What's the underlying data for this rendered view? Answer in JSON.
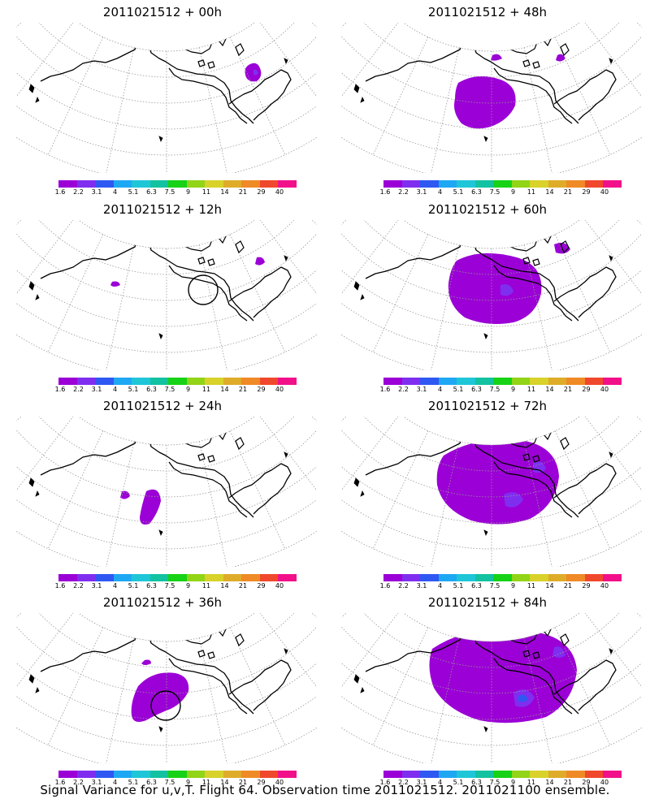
{
  "palette": [
    "#9b00d6",
    "#7f2ef0",
    "#2f58f2",
    "#1ea8f3",
    "#1fc6d8",
    "#13c2a0",
    "#17d217",
    "#92d417",
    "#d8d22a",
    "#dfac2a",
    "#ef8a26",
    "#f0482c",
    "#f2108a"
  ],
  "legend_labels": [
    "1.6",
    "2.2",
    "3.1",
    "4",
    "5.1",
    "6.3",
    "7.5",
    "9",
    "11",
    "14",
    "21",
    "29",
    "40"
  ],
  "map_style": {
    "ocean": "#ffffff",
    "coast": "#000000",
    "grid": "#9a9a9a",
    "circle": "#000000"
  },
  "panels": [
    {
      "id": "p00",
      "title": "2011021512 + 00h",
      "lead_hours": 0,
      "has_circle": false
    },
    {
      "id": "p48",
      "title": "2011021512 + 48h",
      "lead_hours": 48,
      "has_circle": false
    },
    {
      "id": "p12",
      "title": "2011021512 + 12h",
      "lead_hours": 12,
      "has_circle": true
    },
    {
      "id": "p60",
      "title": "2011021512 + 60h",
      "lead_hours": 60,
      "has_circle": false
    },
    {
      "id": "p24",
      "title": "2011021512 + 24h",
      "lead_hours": 24,
      "has_circle": false
    },
    {
      "id": "p72",
      "title": "2011021512 + 72h",
      "lead_hours": 72,
      "has_circle": false
    },
    {
      "id": "p36",
      "title": "2011021512 + 36h",
      "lead_hours": 36,
      "has_circle": true
    },
    {
      "id": "p84",
      "title": "2011021512 + 84h",
      "lead_hours": 84,
      "has_circle": false
    }
  ],
  "footer": "Signal Variance for u,v,T. Flight 64. Observation time 2011021512. 2011021100 ensemble."
}
